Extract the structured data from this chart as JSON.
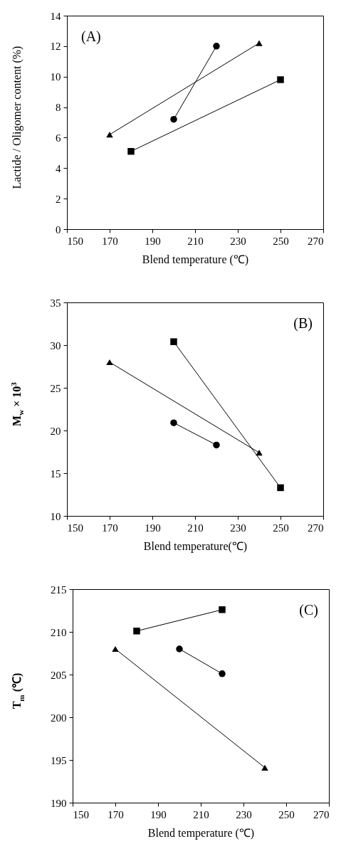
{
  "chart_data": [
    {
      "type": "line",
      "annotations": [
        "(A)"
      ],
      "xlabel": "Blend temperature (℃)",
      "ylabel": "Lactide / Oligomer content (%)",
      "xlim": [
        150,
        270
      ],
      "xticks": [
        150,
        170,
        190,
        210,
        230,
        250,
        270
      ],
      "ylim": [
        0,
        14
      ],
      "yticks": [
        0,
        2,
        4,
        6,
        8,
        10,
        12,
        14
      ],
      "grid": false,
      "line_style": "solid",
      "series": [
        {
          "color": "#000000",
          "marker": "triangle",
          "x": [
            170,
            240
          ],
          "values": [
            6.2,
            12.2
          ]
        },
        {
          "color": "#000000",
          "marker": "circle",
          "x": [
            200,
            220
          ],
          "values": [
            7.2,
            12.0
          ]
        },
        {
          "color": "#000000",
          "marker": "square",
          "x": [
            180,
            250
          ],
          "values": [
            5.1,
            9.8
          ]
        }
      ]
    },
    {
      "type": "line",
      "annotations": [
        "(B)"
      ],
      "xlabel": "Blend temperature(℃)",
      "ylabel": "M$_{w}$ × 10$^{3}$",
      "xlim": [
        150,
        270
      ],
      "xticks": [
        150,
        170,
        190,
        210,
        230,
        250,
        270
      ],
      "ylim": [
        10,
        35
      ],
      "yticks": [
        10,
        15,
        20,
        25,
        30,
        35
      ],
      "grid": false,
      "line_style": "solid",
      "series": [
        {
          "color": "#000000",
          "marker": "square",
          "x": [
            200,
            250
          ],
          "values": [
            30.4,
            13.3
          ]
        },
        {
          "color": "#000000",
          "marker": "triangle",
          "x": [
            170,
            240
          ],
          "values": [
            28.0,
            17.4
          ]
        },
        {
          "color": "#000000",
          "marker": "circle",
          "x": [
            200,
            220
          ],
          "values": [
            20.9,
            18.3
          ]
        }
      ]
    },
    {
      "type": "line",
      "annotations": [
        "(C)"
      ],
      "xlabel": "Blend temperature (℃)",
      "ylabel": "T$_{m}$ (℃)",
      "xlim": [
        150,
        270
      ],
      "xticks": [
        150,
        170,
        190,
        210,
        230,
        250,
        270
      ],
      "ylim": [
        190,
        215
      ],
      "yticks": [
        190,
        195,
        200,
        205,
        210,
        215
      ],
      "grid": false,
      "line_style": "solid",
      "series": [
        {
          "color": "#000000",
          "marker": "square",
          "x": [
            180,
            220
          ],
          "values": [
            210.1,
            212.6
          ]
        },
        {
          "color": "#000000",
          "marker": "circle",
          "x": [
            200,
            220
          ],
          "values": [
            208.0,
            205.1
          ]
        },
        {
          "color": "#000000",
          "marker": "triangle",
          "x": [
            170,
            240
          ],
          "values": [
            208.0,
            194.1
          ]
        }
      ]
    }
  ]
}
